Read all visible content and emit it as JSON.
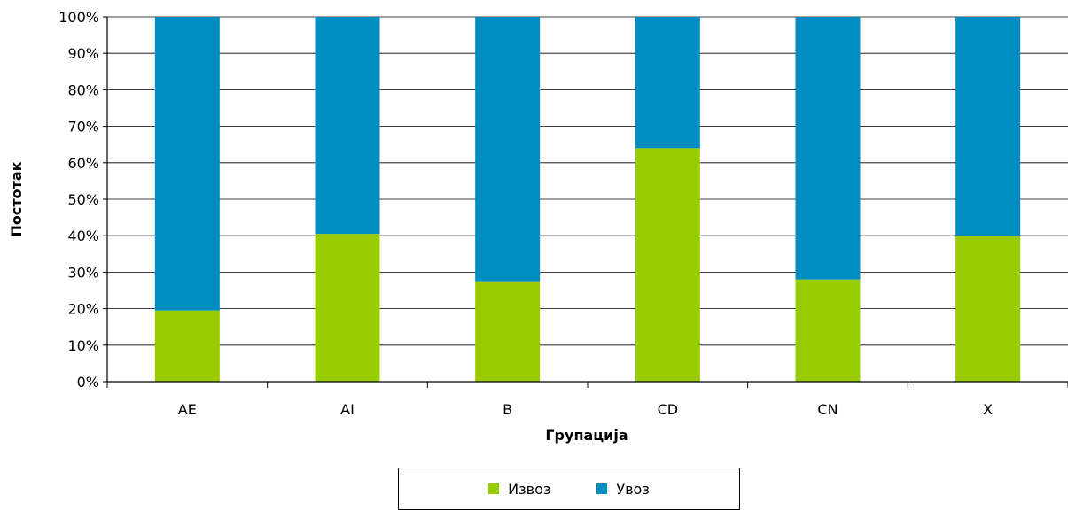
{
  "chart_data": {
    "type": "bar",
    "stacked": true,
    "categories": [
      "AE",
      "AI",
      "B",
      "CD",
      "CN",
      "X"
    ],
    "series": [
      {
        "name": "Извоз",
        "color": "#99cc00",
        "values": [
          19.5,
          40.5,
          27.5,
          64,
          28,
          40
        ]
      },
      {
        "name": "Увоз",
        "color": "#008ec2",
        "values": [
          80.5,
          59.5,
          72.5,
          36,
          72,
          60
        ]
      }
    ],
    "xlabel": "Групација",
    "ylabel": "Постотак",
    "ylim": [
      0,
      100
    ],
    "yticks": [
      "0%",
      "10%",
      "20%",
      "30%",
      "40%",
      "50%",
      "60%",
      "70%",
      "80%",
      "90%",
      "100%"
    ],
    "grid": true,
    "legend_position": "bottom"
  }
}
